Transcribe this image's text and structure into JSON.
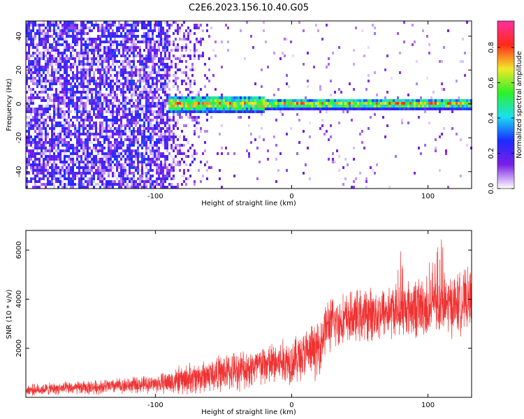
{
  "page_title": "C2E6.2023.156.10.40.G05",
  "chart_data": [
    {
      "type": "heatmap",
      "xlabel": "Height of straight line (km)",
      "ylabel": "Frequency (Hz)",
      "xlim": [
        -195,
        132
      ],
      "ylim": [
        -50,
        49
      ],
      "xticks": [
        -100,
        0,
        100
      ],
      "xtick_labels": [
        "-100",
        "0",
        "100"
      ],
      "yticks": [
        -40,
        -20,
        0,
        20,
        40
      ],
      "ytick_labels": [
        "-40",
        "-20",
        "0",
        "20",
        "40"
      ],
      "colorbar": {
        "label": "Normalized spectral amplitude",
        "range": [
          0,
          0.95
        ],
        "ticks": [
          0,
          0.2,
          0.4,
          0.6,
          0.8
        ],
        "tick_labels": [
          "0.0",
          "0.2",
          "0.4",
          "0.6",
          "0.8"
        ],
        "colormap": [
          "#ffffff",
          "#7a1fe6",
          "#1c2bff",
          "#18e0f0",
          "#2ef02a",
          "#f2e92a",
          "#ff2a1a",
          "#ff2fa0"
        ]
      },
      "signal_band": {
        "x_start": -90,
        "x_end": 132,
        "center_hz": 0,
        "half_width_hz": 3,
        "peak_amplitude": 0.9
      },
      "noise": {
        "dense_x_max": -90,
        "dense_amplitude": 0.3,
        "fade_x_max": -60
      },
      "grid": false
    },
    {
      "type": "line",
      "xlabel": "Height of straight line (km)",
      "ylabel": "SNR (10 * v/v)",
      "xlim": [
        -195,
        132
      ],
      "ylim": [
        0,
        6800
      ],
      "xticks": [
        -100,
        0,
        100
      ],
      "xtick_labels": [
        "-100",
        "0",
        "100"
      ],
      "yticks": [
        2000,
        4000,
        6000
      ],
      "ytick_labels": [
        "2000",
        "4000",
        "6000"
      ],
      "line_color": "#f03232",
      "trend": {
        "x": [
          -195,
          -150,
          -100,
          -80,
          -60,
          -40,
          -20,
          0,
          20,
          25,
          40,
          60,
          80,
          100,
          120,
          132
        ],
        "y": [
          300,
          400,
          550,
          700,
          900,
          1100,
          1300,
          1500,
          2000,
          2900,
          3200,
          3400,
          3600,
          3700,
          3800,
          4000
        ]
      },
      "spread": {
        "x": [
          -195,
          -100,
          -80,
          -40,
          0,
          20,
          40,
          80,
          100,
          132
        ],
        "y": [
          250,
          400,
          700,
          900,
          1100,
          1300,
          1200,
          1300,
          1500,
          1400
        ]
      },
      "grid": false
    }
  ]
}
